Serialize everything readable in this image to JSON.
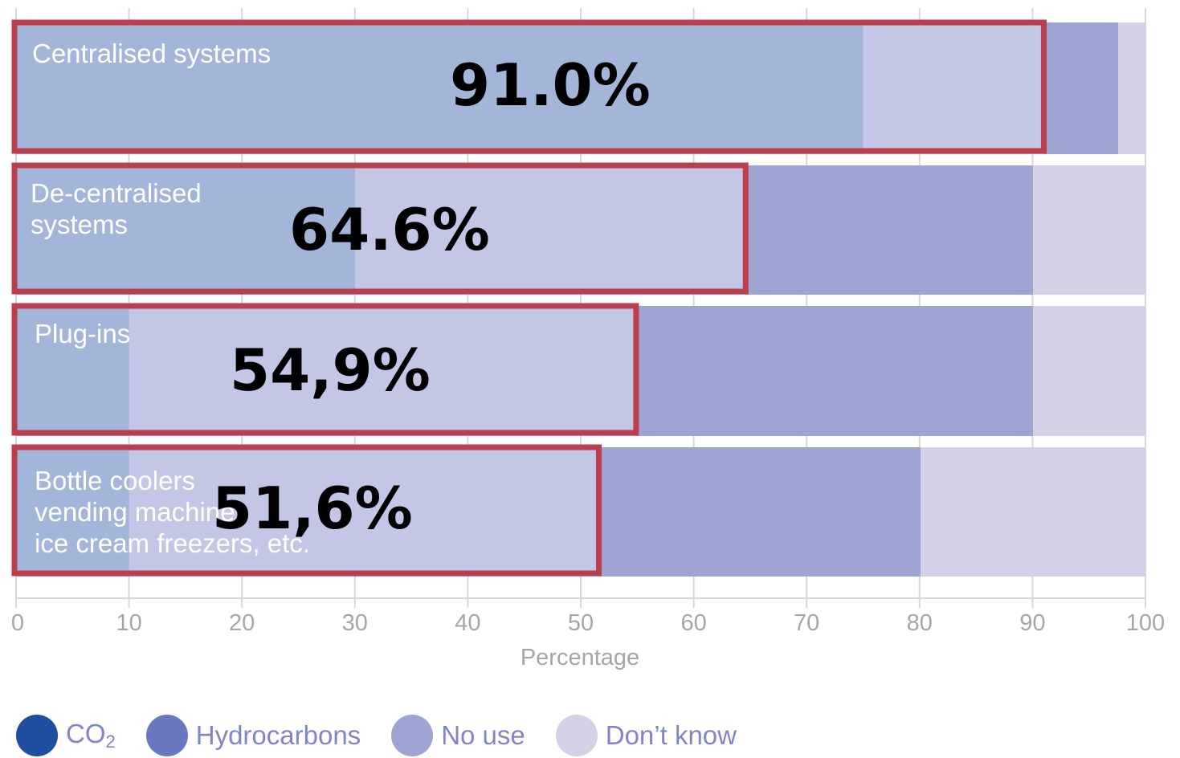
{
  "chart_data": {
    "type": "bar",
    "orientation": "horizontal",
    "stacked": true,
    "categories": [
      "Centralised systems",
      "De-centralised\nsystems",
      "Plug-ins",
      "Bottle coolers\nvending machines\nice cream freezers, etc."
    ],
    "series": [
      {
        "name": "CO2",
        "color": "#1f4e9e",
        "values": [
          0,
          0,
          0,
          0
        ]
      },
      {
        "name": "Hydrocarbons",
        "color": "#6a78bf",
        "values": [
          0,
          0,
          0,
          0
        ]
      },
      {
        "name": "No use",
        "color": "#9ea5d3",
        "values": [
          75,
          30,
          10,
          10
        ]
      },
      {
        "name": "Don’t know",
        "color": "#d3d0e7",
        "values": [
          25,
          70,
          90,
          90
        ]
      }
    ],
    "overlay_values": [
      91.0,
      64.6,
      54.9,
      51.6
    ],
    "overlay_labels": [
      "91.0%",
      "64.6%",
      "54,9%",
      "51,6%"
    ],
    "xlabel": "Percentage",
    "xlim": [
      0,
      100
    ],
    "ticks": [
      "0",
      "10",
      "20",
      "30",
      "40",
      "50",
      "60",
      "70",
      "80",
      "90",
      "100"
    ],
    "grid": true,
    "legend_position": "bottom-left"
  },
  "colors": {
    "bar_blue": "#a3b6d9",
    "bar_lilac": "#c3c6e5",
    "bar_mid": "#9ea5d3",
    "bar_light": "#d3d0e7",
    "highlight_border": "#bb3e4f",
    "grid": "#d8d8d8",
    "axis_text": "#a6a6a6",
    "legend_text": "#7f86c8"
  }
}
